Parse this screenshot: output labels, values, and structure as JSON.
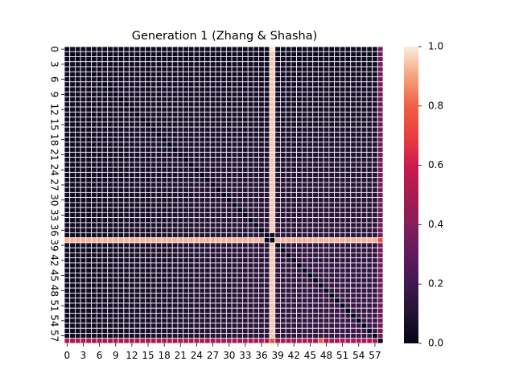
{
  "chart_data": {
    "type": "heatmap",
    "title": "Generation 1 (Zhang & Shasha)",
    "xlabel": "",
    "ylabel": "",
    "n_rows": 59,
    "n_cols": 59,
    "x_tick_labels": [
      "0",
      "3",
      "6",
      "9",
      "12",
      "15",
      "18",
      "21",
      "24",
      "27",
      "30",
      "33",
      "36",
      "39",
      "42",
      "45",
      "48",
      "51",
      "54",
      "57"
    ],
    "y_tick_labels": [
      "0",
      "3",
      "6",
      "9",
      "12",
      "15",
      "18",
      "21",
      "24",
      "27",
      "30",
      "33",
      "36",
      "39",
      "42",
      "45",
      "48",
      "51",
      "54",
      "57"
    ],
    "colorbar": {
      "min": 0.0,
      "max": 1.0,
      "tick_labels": [
        "0.0",
        "0.2",
        "0.4",
        "0.6",
        "0.8",
        "1.0"
      ],
      "colormap": "rocket"
    },
    "value_rules": {
      "diagonal": 0.0,
      "background_range": [
        0.04,
        0.14
      ],
      "row_38_value": 0.92,
      "col_38_value": 0.95,
      "col_58_value": 0.35,
      "row_58_value": 0.5,
      "highlight_cells": [
        {
          "row": 0,
          "col": 38,
          "value": 1.0
        },
        {
          "row": 37,
          "col": 38,
          "value": 0.0
        },
        {
          "row": 38,
          "col": 37,
          "value": 0.0
        },
        {
          "row": 38,
          "col": 58,
          "value": 0.75
        },
        {
          "row": 58,
          "col": 38,
          "value": 0.75
        },
        {
          "row": 58,
          "col": 47,
          "value": 0.78
        },
        {
          "row": 58,
          "col": 58,
          "value": 0.0
        }
      ]
    },
    "grid": true,
    "legend": "none"
  }
}
